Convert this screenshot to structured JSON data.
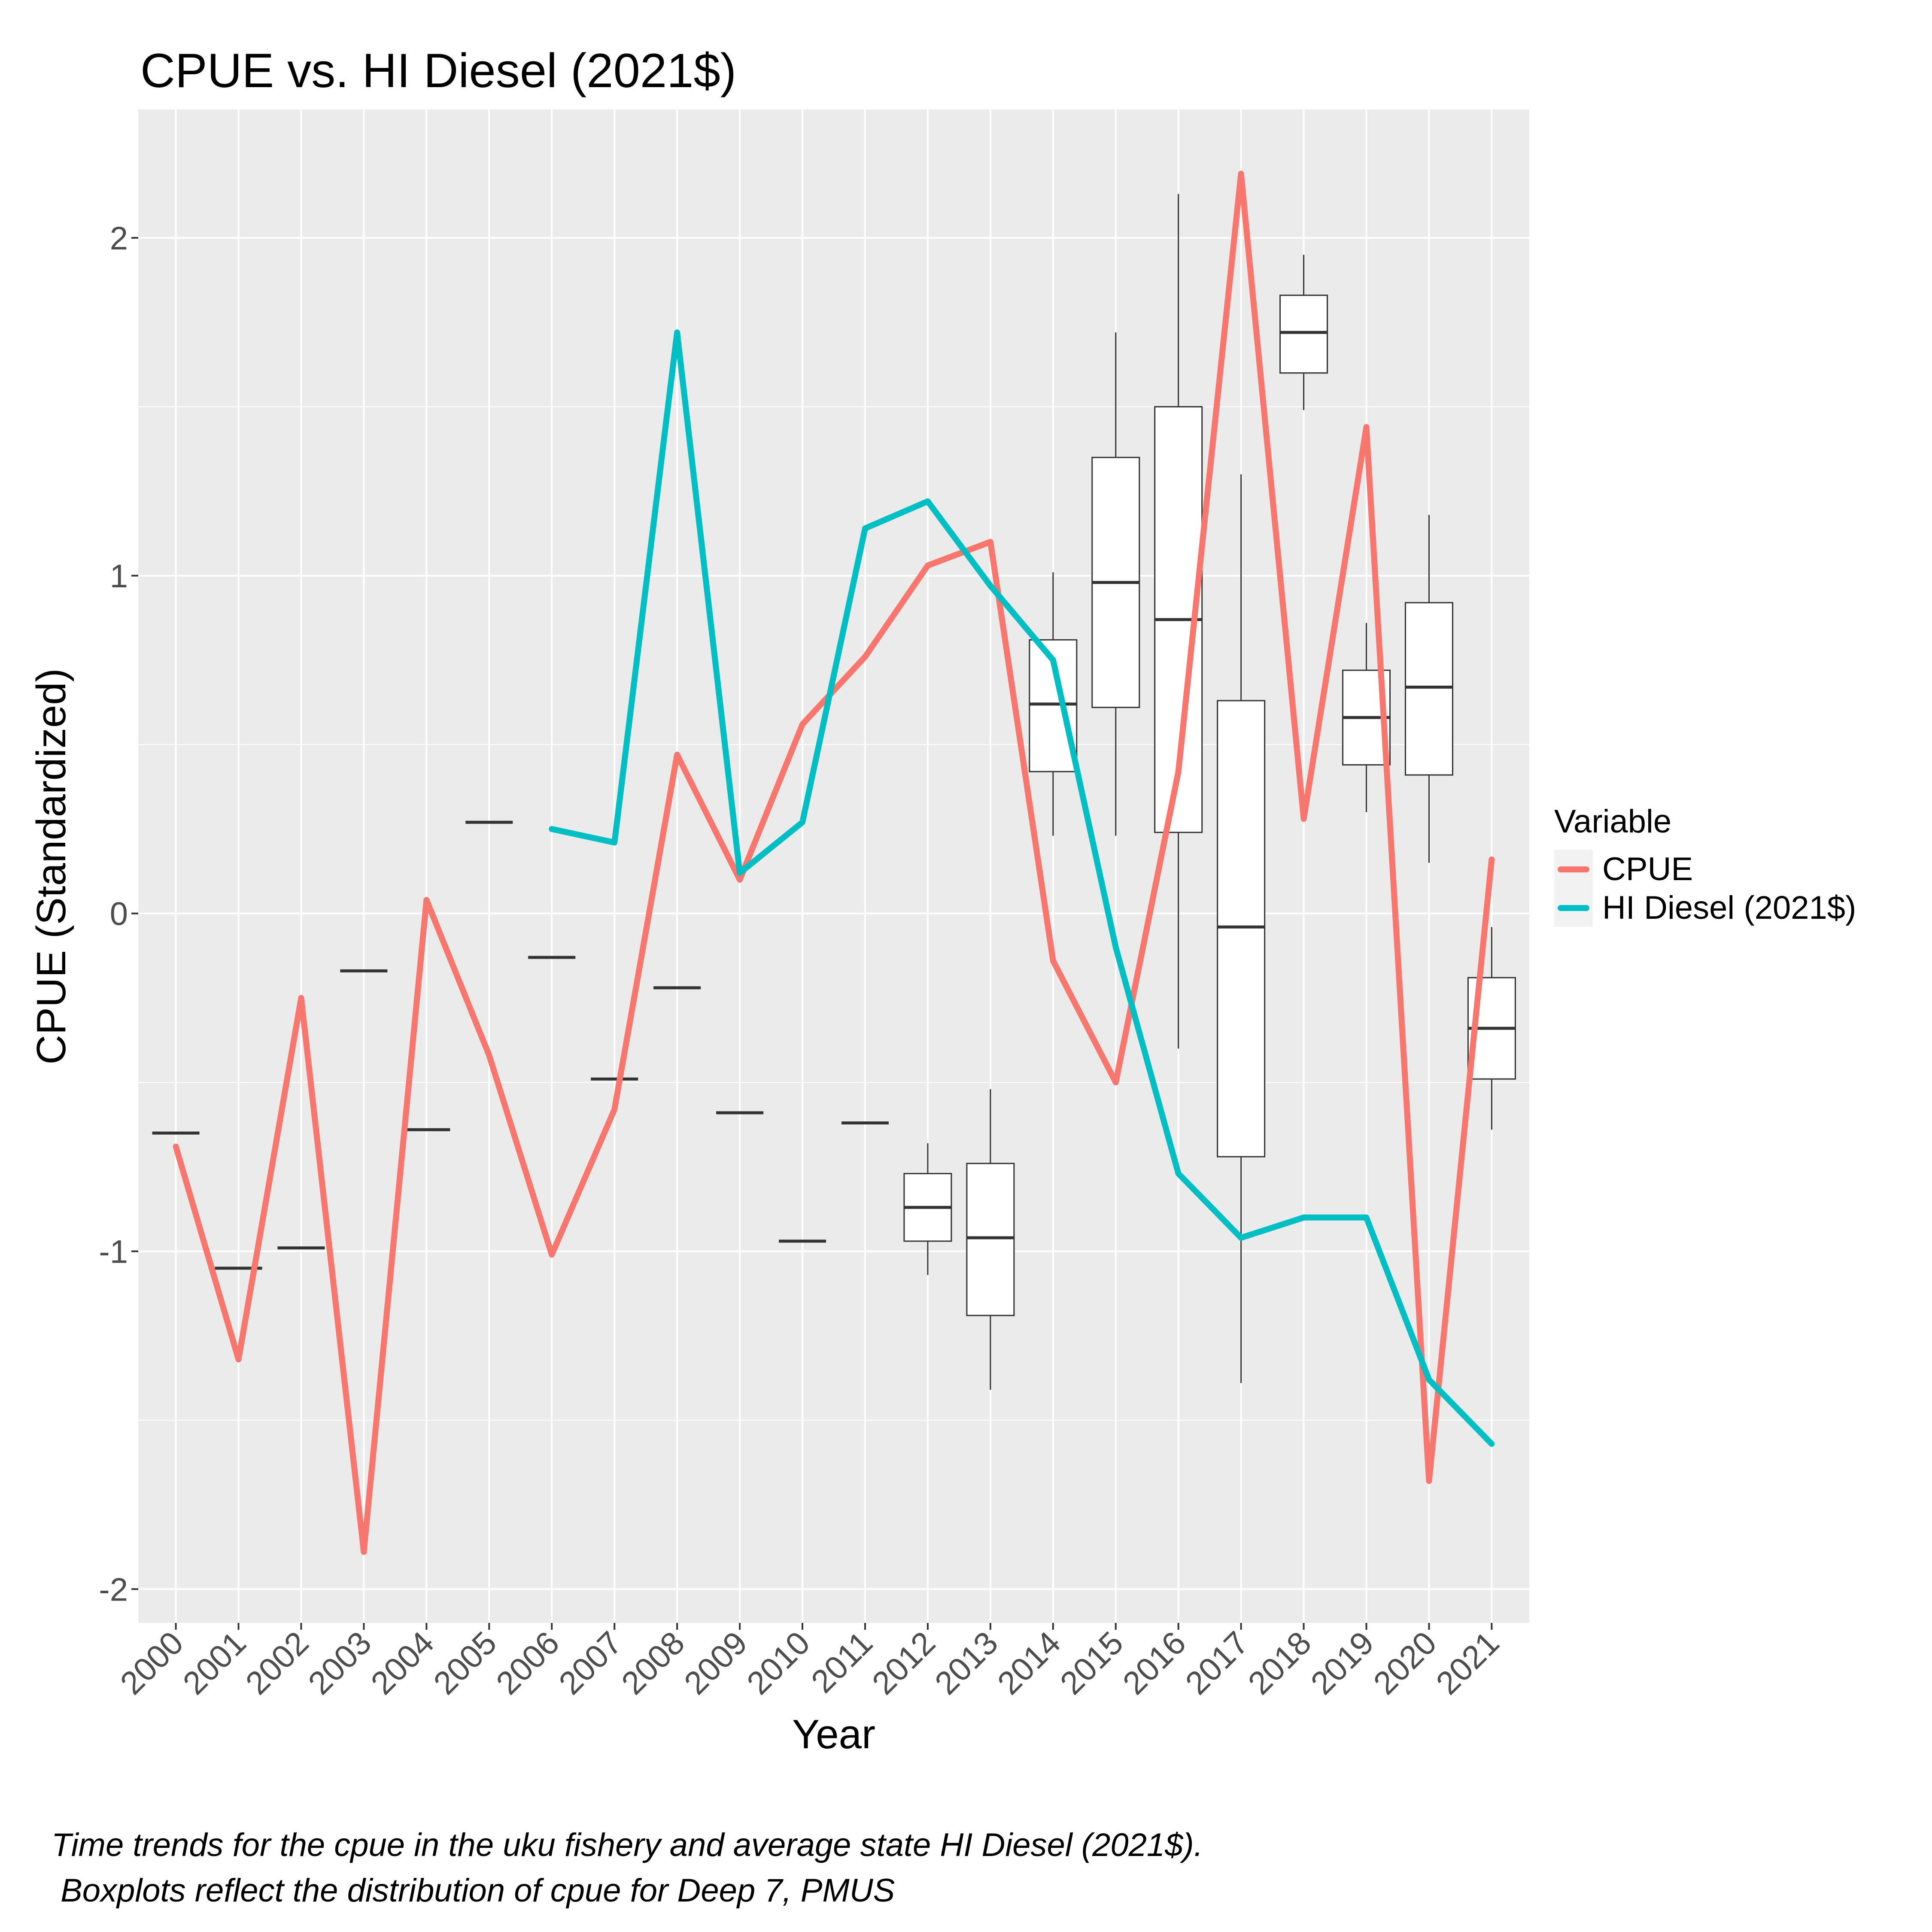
{
  "chart_data": {
    "type": "line",
    "title": "CPUE vs. HI Diesel (2021$)",
    "xlabel": "Year",
    "ylabel": "CPUE (Standardized)",
    "categories": [
      "2000",
      "2001",
      "2002",
      "2003",
      "2004",
      "2005",
      "2006",
      "2007",
      "2008",
      "2009",
      "2010",
      "2011",
      "2012",
      "2013",
      "2014",
      "2015",
      "2016",
      "2017",
      "2018",
      "2019",
      "2020",
      "2021"
    ],
    "ylim": [
      -2.1,
      2.38
    ],
    "yticks": [
      -2,
      -1,
      0,
      1,
      2
    ],
    "ytick_labels": [
      "-2",
      "-1",
      "0",
      "1",
      "2"
    ],
    "grid": true,
    "legend_title": "Variable",
    "legend_position": "right",
    "series": [
      {
        "name": "CPUE",
        "color": "#F8766D",
        "values": [
          -0.69,
          -1.32,
          -0.25,
          -1.89,
          0.04,
          -0.42,
          -1.01,
          -0.58,
          0.47,
          0.1,
          0.56,
          0.76,
          1.03,
          1.1,
          -0.14,
          -0.5,
          0.42,
          2.19,
          0.28,
          1.44,
          -1.68,
          0.16
        ]
      },
      {
        "name": "HI Diesel (2021$)",
        "color": "#00BFC4",
        "values": [
          null,
          null,
          null,
          null,
          null,
          null,
          0.25,
          0.21,
          1.72,
          0.12,
          0.27,
          1.14,
          1.22,
          0.97,
          0.75,
          -0.1,
          -0.77,
          -0.96,
          -0.9,
          -0.9,
          -1.38,
          -1.57
        ]
      }
    ],
    "boxplots": [
      {
        "year": "2000",
        "min": -0.65,
        "q1": -0.65,
        "median": -0.65,
        "q3": -0.65,
        "max": -0.65
      },
      {
        "year": "2001",
        "min": -1.05,
        "q1": -1.05,
        "median": -1.05,
        "q3": -1.05,
        "max": -1.05
      },
      {
        "year": "2002",
        "min": -0.99,
        "q1": -0.99,
        "median": -0.99,
        "q3": -0.99,
        "max": -0.99
      },
      {
        "year": "2003",
        "min": -0.17,
        "q1": -0.17,
        "median": -0.17,
        "q3": -0.17,
        "max": -0.17
      },
      {
        "year": "2004",
        "min": -0.64,
        "q1": -0.64,
        "median": -0.64,
        "q3": -0.64,
        "max": -0.64
      },
      {
        "year": "2005",
        "min": 0.27,
        "q1": 0.27,
        "median": 0.27,
        "q3": 0.27,
        "max": 0.27
      },
      {
        "year": "2006",
        "min": -0.13,
        "q1": -0.13,
        "median": -0.13,
        "q3": -0.13,
        "max": -0.13
      },
      {
        "year": "2007",
        "min": -0.49,
        "q1": -0.49,
        "median": -0.49,
        "q3": -0.49,
        "max": -0.49
      },
      {
        "year": "2008",
        "min": -0.22,
        "q1": -0.22,
        "median": -0.22,
        "q3": -0.22,
        "max": -0.22
      },
      {
        "year": "2009",
        "min": -0.59,
        "q1": -0.59,
        "median": -0.59,
        "q3": -0.59,
        "max": -0.59
      },
      {
        "year": "2010",
        "min": -0.97,
        "q1": -0.97,
        "median": -0.97,
        "q3": -0.97,
        "max": -0.97
      },
      {
        "year": "2011",
        "min": -0.62,
        "q1": -0.62,
        "median": -0.62,
        "q3": -0.62,
        "max": -0.62
      },
      {
        "year": "2012",
        "min": -1.07,
        "q1": -0.97,
        "median": -0.87,
        "q3": -0.77,
        "max": -0.68
      },
      {
        "year": "2013",
        "min": -1.41,
        "q1": -1.19,
        "median": -0.96,
        "q3": -0.74,
        "max": -0.52
      },
      {
        "year": "2014",
        "min": 0.23,
        "q1": 0.42,
        "median": 0.62,
        "q3": 0.81,
        "max": 1.01
      },
      {
        "year": "2015",
        "min": 0.23,
        "q1": 0.61,
        "median": 0.98,
        "q3": 1.35,
        "max": 1.72
      },
      {
        "year": "2016",
        "min": -0.4,
        "q1": 0.24,
        "median": 0.87,
        "q3": 1.5,
        "max": 2.13
      },
      {
        "year": "2017",
        "min": -1.39,
        "q1": -0.72,
        "median": -0.04,
        "q3": 0.63,
        "max": 1.3
      },
      {
        "year": "2018",
        "min": 1.49,
        "q1": 1.6,
        "median": 1.72,
        "q3": 1.83,
        "max": 1.95
      },
      {
        "year": "2019",
        "min": 0.3,
        "q1": 0.44,
        "median": 0.58,
        "q3": 0.72,
        "max": 0.86
      },
      {
        "year": "2020",
        "min": 0.15,
        "q1": 0.41,
        "median": 0.67,
        "q3": 0.92,
        "max": 1.18
      },
      {
        "year": "2021",
        "min": -0.64,
        "q1": -0.49,
        "median": -0.34,
        "q3": -0.19,
        "max": -0.04
      }
    ]
  },
  "caption": "Time trends for the cpue in the uku fishery and average state HI Diesel (2021$).\n Boxplots reflect the distribution of cpue for Deep 7, PMUS"
}
